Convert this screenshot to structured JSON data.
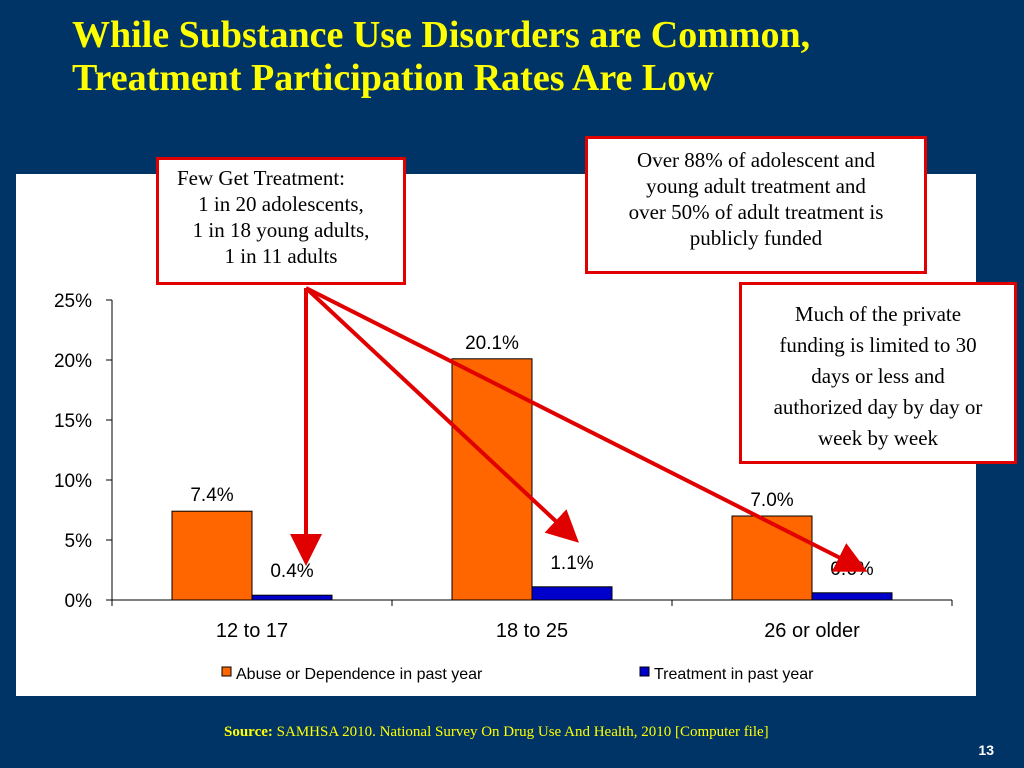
{
  "slide": {
    "title_line1": "While Substance Use Disorders are Common,",
    "title_line2": "Treatment Participation Rates Are Low",
    "source_label": "Source:",
    "source_text": "SAMHSA 2010. National Survey On Drug Use And Health, 2010 [Computer file]",
    "page_number": "13",
    "background_color": "#003467",
    "title_color": "#ffff00"
  },
  "callouts": {
    "few_get_treatment": [
      "Few Get Treatment:",
      "1 in 20 adolescents,",
      "1 in 18 young adults,",
      "1 in 11 adults"
    ],
    "publicly_funded": [
      "Over 88% of adolescent and",
      "young adult treatment and",
      "over 50% of adult treatment is",
      "publicly funded"
    ],
    "private_funding": [
      "Much of the private",
      "funding is limited to 30",
      "days or less and",
      "authorized day by day or",
      "week by week"
    ],
    "border_color": "#e00000"
  },
  "chart_data": {
    "type": "bar",
    "categories": [
      "12 to 17",
      "18 to 25",
      "26 or older"
    ],
    "series": [
      {
        "name": "Abuse or Dependence in past year",
        "values": [
          7.4,
          20.1,
          7.0
        ],
        "labels": [
          "7.4%",
          "20.1%",
          "7.0%"
        ],
        "color": "#ff6600"
      },
      {
        "name": "Treatment in past year",
        "values": [
          0.4,
          1.1,
          0.6
        ],
        "labels": [
          "0.4%",
          "1.1%",
          "0.6%"
        ],
        "color": "#0000cc"
      }
    ],
    "yticks": [
      "0%",
      "5%",
      "10%",
      "15%",
      "20%",
      "25%"
    ],
    "ylim": [
      0,
      25
    ],
    "legend_position": "bottom",
    "grid": false
  }
}
